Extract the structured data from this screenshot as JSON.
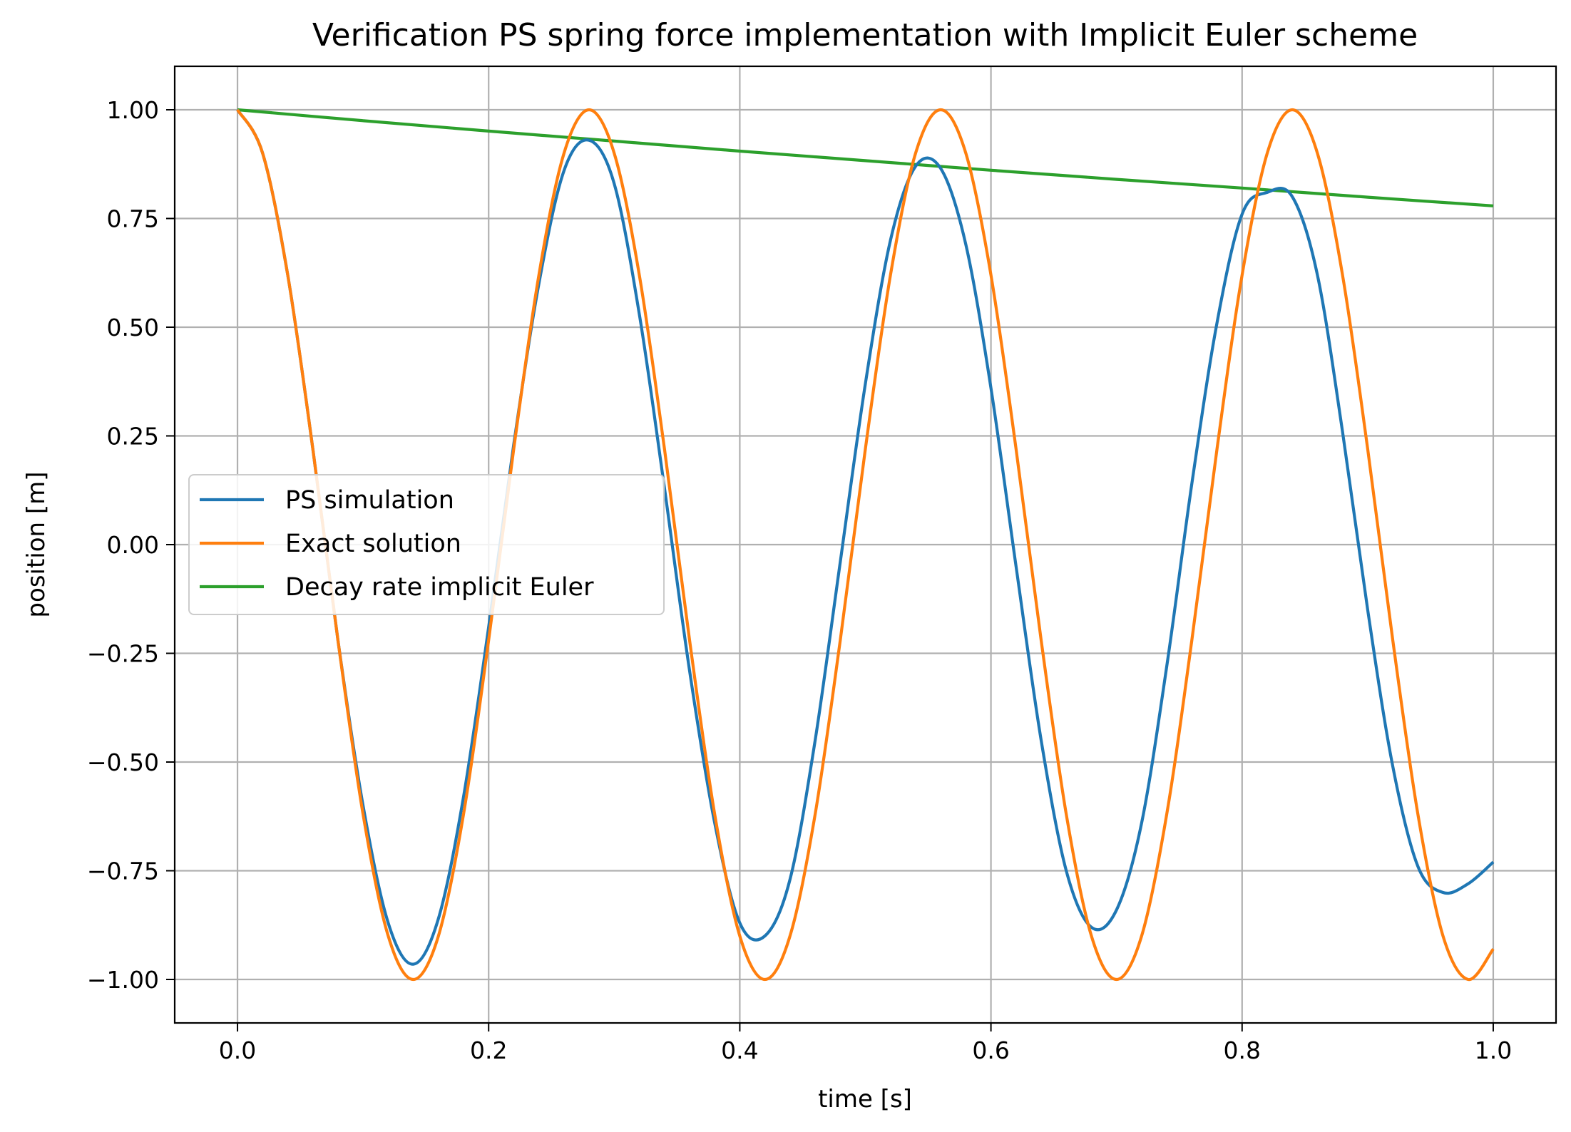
{
  "chart_data": {
    "type": "line",
    "title": "Verification PS spring force implementation with Implicit Euler scheme",
    "xlabel": "time [s]",
    "ylabel": "position [m]",
    "xlim": [
      -0.05,
      1.05
    ],
    "ylim": [
      -1.1,
      1.1
    ],
    "xticks": [
      0.0,
      0.2,
      0.4,
      0.6,
      0.8,
      1.0
    ],
    "xtick_labels": [
      "0.0",
      "0.2",
      "0.4",
      "0.6",
      "0.8",
      "1.0"
    ],
    "yticks": [
      1.0,
      0.75,
      0.5,
      0.25,
      0.0,
      -0.25,
      -0.5,
      -0.75,
      -1.0
    ],
    "ytick_labels": [
      "1.00",
      "0.75",
      "0.50",
      "0.25",
      "0.00",
      "−0.25",
      "−0.50",
      "−0.75",
      "−1.00"
    ],
    "grid": true,
    "legend_position": "center-left",
    "series": [
      {
        "name": "PS simulation",
        "color": "#1f77b4",
        "x": [
          0.0,
          0.02,
          0.04,
          0.06,
          0.08,
          0.1,
          0.12,
          0.14,
          0.16,
          0.18,
          0.2,
          0.22,
          0.24,
          0.26,
          0.28,
          0.3,
          0.32,
          0.34,
          0.36,
          0.38,
          0.4,
          0.42,
          0.44,
          0.46,
          0.48,
          0.5,
          0.52,
          0.54,
          0.56,
          0.58,
          0.6,
          0.62,
          0.64,
          0.66,
          0.68,
          0.7,
          0.72,
          0.74,
          0.76,
          0.78,
          0.8,
          0.82,
          0.84,
          0.86,
          0.88,
          0.9,
          0.92,
          0.94,
          0.96,
          0.98,
          1.0
        ],
        "y": [
          1.0,
          0.9,
          0.62,
          0.22,
          -0.22,
          -0.6,
          -0.87,
          -0.965,
          -0.86,
          -0.58,
          -0.19,
          0.23,
          0.6,
          0.86,
          0.93,
          0.83,
          0.53,
          0.13,
          -0.29,
          -0.64,
          -0.87,
          -0.9,
          -0.77,
          -0.45,
          -0.04,
          0.37,
          0.7,
          0.87,
          0.865,
          0.69,
          0.36,
          -0.05,
          -0.45,
          -0.75,
          -0.88,
          -0.84,
          -0.64,
          -0.28,
          0.14,
          0.51,
          0.76,
          0.81,
          0.8,
          0.62,
          0.26,
          -0.15,
          -0.51,
          -0.74,
          -0.8,
          -0.78,
          -0.73
        ]
      },
      {
        "name": "Exact solution",
        "color": "#ff7f0e",
        "x": [
          0.0,
          0.02,
          0.04,
          0.06,
          0.08,
          0.1,
          0.12,
          0.14,
          0.16,
          0.18,
          0.2,
          0.22,
          0.24,
          0.26,
          0.28,
          0.3,
          0.32,
          0.34,
          0.36,
          0.38,
          0.4,
          0.42,
          0.44,
          0.46,
          0.48,
          0.5,
          0.52,
          0.54,
          0.56,
          0.58,
          0.6,
          0.62,
          0.64,
          0.66,
          0.68,
          0.7,
          0.72,
          0.74,
          0.76,
          0.78,
          0.8,
          0.82,
          0.84,
          0.86,
          0.88,
          0.9,
          0.92,
          0.94,
          0.96,
          0.98,
          1.0
        ],
        "y": [
          1.0,
          0.9,
          0.62,
          0.22,
          -0.22,
          -0.62,
          -0.9,
          -1.0,
          -0.9,
          -0.62,
          -0.22,
          0.22,
          0.62,
          0.9,
          1.0,
          0.9,
          0.62,
          0.22,
          -0.22,
          -0.62,
          -0.9,
          -1.0,
          -0.9,
          -0.62,
          -0.22,
          0.22,
          0.62,
          0.9,
          1.0,
          0.9,
          0.62,
          0.22,
          -0.22,
          -0.62,
          -0.9,
          -1.0,
          -0.9,
          -0.62,
          -0.22,
          0.22,
          0.62,
          0.9,
          1.0,
          0.9,
          0.62,
          0.22,
          -0.22,
          -0.62,
          -0.9,
          -1.0,
          -0.93
        ]
      },
      {
        "name": "Decay rate implicit Euler",
        "color": "#2ca02c",
        "x": [
          0.0,
          0.1,
          0.2,
          0.3,
          0.4,
          0.5,
          0.6,
          0.7,
          0.8,
          0.9,
          1.0
        ],
        "y": [
          1.0,
          0.975,
          0.951,
          0.928,
          0.905,
          0.883,
          0.861,
          0.84,
          0.82,
          0.799,
          0.779
        ]
      }
    ]
  }
}
